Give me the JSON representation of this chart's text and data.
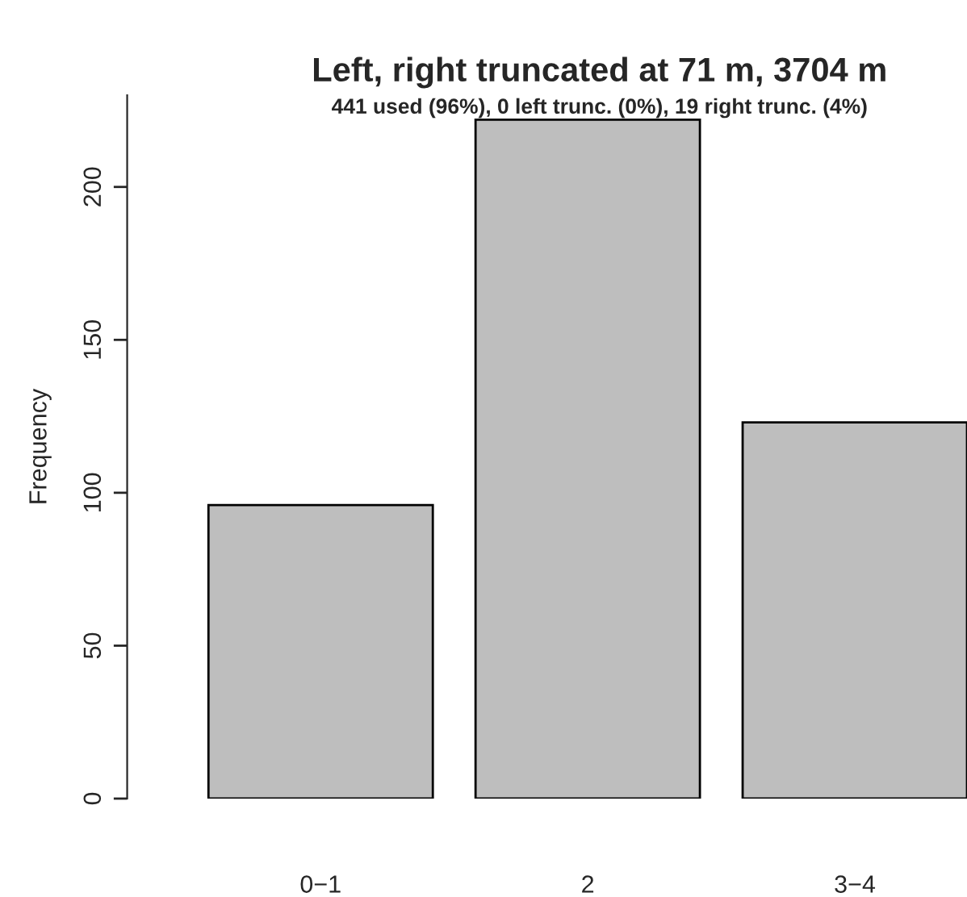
{
  "chart_data": {
    "type": "bar",
    "title": "Left, right truncated at 71 m, 3704 m",
    "subtitle": "441 used (96%), 0 left trunc. (0%), 19 right trunc. (4%)",
    "ylabel": "Frequency",
    "categories": [
      "0−1",
      "2",
      "3−4"
    ],
    "values": [
      96,
      222,
      123
    ],
    "color": "#bebebe",
    "ylim": [
      0,
      230
    ],
    "yticks": [
      0,
      50,
      100,
      150,
      200
    ],
    "grid": false
  }
}
